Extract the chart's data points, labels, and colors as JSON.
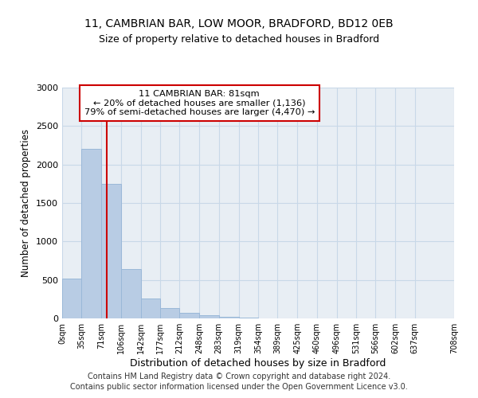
{
  "title1": "11, CAMBRIAN BAR, LOW MOOR, BRADFORD, BD12 0EB",
  "title2": "Size of property relative to detached houses in Bradford",
  "xlabel": "Distribution of detached houses by size in Bradford",
  "ylabel": "Number of detached properties",
  "bar_values": [
    520,
    2200,
    1750,
    640,
    260,
    130,
    75,
    40,
    25,
    10,
    5,
    3,
    0,
    0,
    0,
    0,
    0,
    0,
    0
  ],
  "bin_edges": [
    0,
    35,
    71,
    106,
    142,
    177,
    212,
    248,
    283,
    319,
    354,
    389,
    425,
    460,
    496,
    531,
    566,
    602,
    637,
    708
  ],
  "tick_labels": [
    "0sqm",
    "35sqm",
    "71sqm",
    "106sqm",
    "142sqm",
    "177sqm",
    "212sqm",
    "248sqm",
    "283sqm",
    "319sqm",
    "354sqm",
    "389sqm",
    "425sqm",
    "460sqm",
    "496sqm",
    "531sqm",
    "566sqm",
    "602sqm",
    "637sqm",
    "708sqm"
  ],
  "bar_color": "#b8cce4",
  "bar_edgecolor": "#9ab8d8",
  "vline_x": 81,
  "vline_color": "#cc0000",
  "annotation_line1": "11 CAMBRIAN BAR: 81sqm",
  "annotation_line2": "← 20% of detached houses are smaller (1,136)",
  "annotation_line3": "79% of semi-detached houses are larger (4,470) →",
  "annotation_box_facecolor": "white",
  "annotation_box_edgecolor": "#cc0000",
  "ylim": [
    0,
    3000
  ],
  "yticks": [
    0,
    500,
    1000,
    1500,
    2000,
    2500,
    3000
  ],
  "grid_color": "#c8d8e8",
  "background_color": "#e8eef4",
  "footer1": "Contains HM Land Registry data © Crown copyright and database right 2024.",
  "footer2": "Contains public sector information licensed under the Open Government Licence v3.0."
}
